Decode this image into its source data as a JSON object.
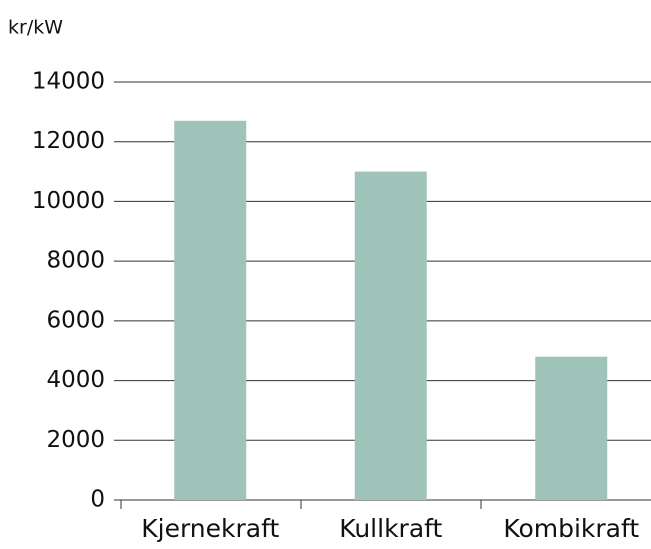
{
  "chart_data": {
    "type": "bar",
    "y_label": "kr/kW",
    "categories": [
      "Kjernekraft",
      "Kullkraft",
      "Kombikraft"
    ],
    "values": [
      12700,
      11000,
      4800
    ],
    "color": "#9fc3b9",
    "ylim": [
      0,
      14000
    ],
    "yticks": [
      0,
      2000,
      4000,
      6000,
      8000,
      10000,
      12000,
      14000
    ],
    "grid": true
  }
}
